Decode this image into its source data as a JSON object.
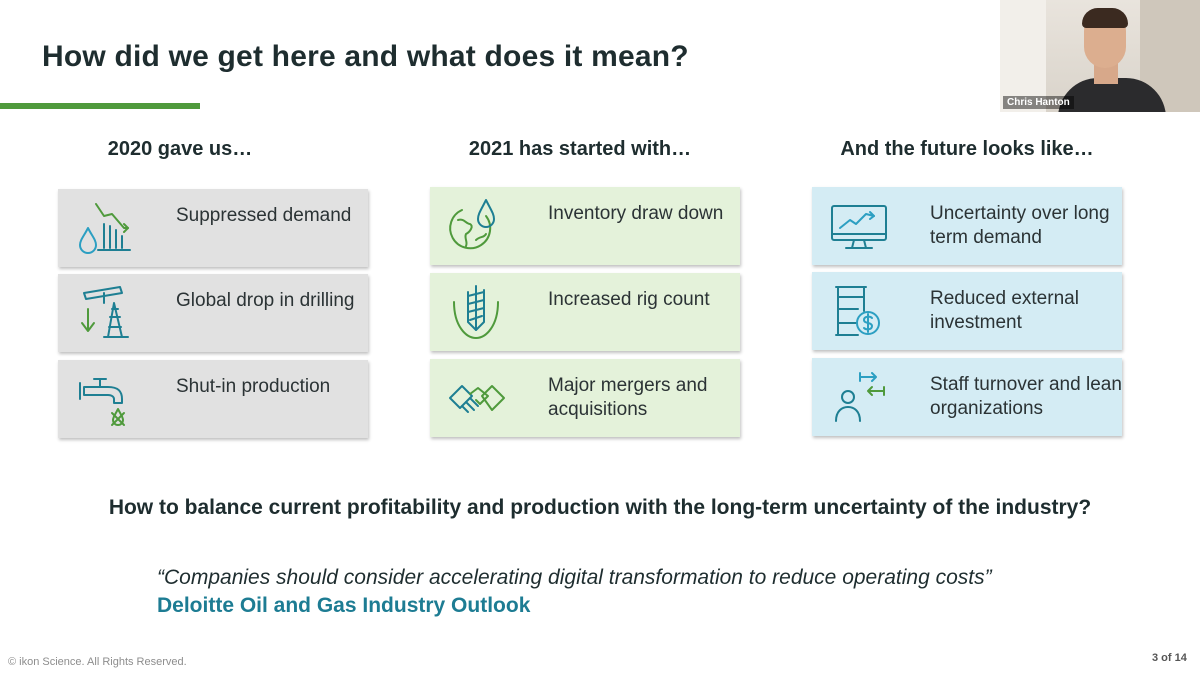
{
  "slide": {
    "title": "How did we get here and what does it mean?",
    "presenter_name": "Chris Hanton",
    "question": "How to balance current profitability and production with the long-term uncertainty of the industry?",
    "quote": "“Companies should consider accelerating digital transformation to reduce operating costs”",
    "quote_source": "Deloitte Oil and Gas Industry Outlook",
    "footer": "© ikon Science. All Rights Reserved.",
    "page_number": "3 of 14"
  },
  "columns": [
    {
      "heading": "2020 gave us…",
      "color": "#e1e1e1",
      "cards": [
        {
          "icon": "suppressed-demand-icon",
          "text": "Suppressed demand"
        },
        {
          "icon": "pumpjack-icon",
          "text": "Global drop in drilling"
        },
        {
          "icon": "faucet-icon",
          "text": "Shut-in production"
        }
      ]
    },
    {
      "heading": "2021 has started with…",
      "color": "#e4f2da",
      "cards": [
        {
          "icon": "globe-droplet-icon",
          "text": "Inventory draw down"
        },
        {
          "icon": "drill-bit-icon",
          "text": "Increased rig count"
        },
        {
          "icon": "handshake-icon",
          "text": "Major mergers and acquisitions"
        }
      ]
    },
    {
      "heading": "And the future looks like…",
      "color": "#d4ecf4",
      "cards": [
        {
          "icon": "monitor-chart-icon",
          "text": "Uncertainty over long term demand"
        },
        {
          "icon": "barrel-dollar-icon",
          "text": "Reduced external investment"
        },
        {
          "icon": "staff-turnover-icon",
          "text": "Staff turnover and lean organizations"
        }
      ]
    }
  ],
  "colors": {
    "accent_green": "#4f9a3c",
    "accent_teal": "#1d7c93",
    "title_text": "#1e2d2f"
  }
}
